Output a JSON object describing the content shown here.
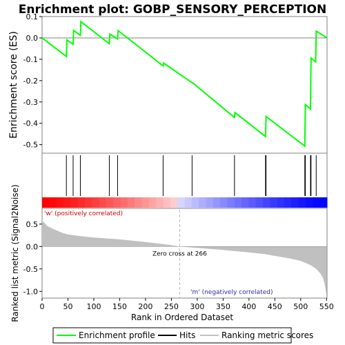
{
  "title": "Enrichment plot: GOBP_SENSORY_PERCEPTION",
  "colors": {
    "profile": "#00ff00",
    "hits": "#000000",
    "metric": "#c0c0c0",
    "zero_line": "#808080",
    "heat_pos": "#ff0000",
    "heat_neg": "#0000ff"
  },
  "legend": {
    "profile": "Enrichment profile",
    "hits": "Hits",
    "metric": "Ranking metric scores"
  },
  "chart_data": [
    {
      "type": "line",
      "name": "enrichment-profile",
      "ylabel": "Enrichment score (ES)",
      "ylim": [
        -0.54,
        0.1
      ],
      "yticks": [
        "0.1",
        "0.0",
        "-0.1",
        "-0.2",
        "-0.3",
        "-0.4",
        "-0.5"
      ],
      "grid": false,
      "x": [
        0,
        47,
        48,
        60,
        61,
        74,
        75,
        130,
        131,
        146,
        147,
        234,
        235,
        290,
        291,
        372,
        373,
        432,
        433,
        508,
        509,
        519,
        520,
        529,
        530,
        551
      ],
      "y": [
        0.0,
        -0.087,
        -0.01,
        -0.03,
        0.035,
        0.012,
        0.076,
        -0.027,
        0.018,
        -0.005,
        0.034,
        -0.131,
        -0.118,
        -0.21,
        -0.21,
        -0.373,
        -0.35,
        -0.462,
        -0.368,
        -0.507,
        -0.312,
        -0.333,
        -0.095,
        -0.112,
        0.032,
        0.0
      ]
    },
    {
      "type": "scatter",
      "name": "hits",
      "hit_ranks": [
        47,
        60,
        74,
        130,
        146,
        234,
        290,
        372,
        432,
        433,
        508,
        509,
        519,
        520,
        530
      ]
    },
    {
      "type": "area",
      "name": "ranking-metric",
      "xlabel": "Rank in Ordered Dataset",
      "ylabel": "Ranked list metric (Signal2Noise)",
      "xlim": [
        0,
        551
      ],
      "ylim": [
        -1.15,
        0.85
      ],
      "xticks": [
        "0",
        "50",
        "100",
        "150",
        "200",
        "250",
        "300",
        "350",
        "400",
        "450",
        "500",
        "550"
      ],
      "yticks": [
        "0.5",
        "0.0",
        "-0.5",
        "-1.0"
      ],
      "x": [
        0,
        5,
        10,
        20,
        30,
        40,
        50,
        75,
        100,
        150,
        200,
        230,
        250,
        266,
        300,
        350,
        400,
        430,
        450,
        480,
        500,
        510,
        520,
        530,
        538,
        543,
        546,
        548,
        550
      ],
      "y": [
        0.58,
        0.52,
        0.46,
        0.4,
        0.35,
        0.3,
        0.27,
        0.23,
        0.2,
        0.16,
        0.1,
        0.06,
        0.03,
        0.0,
        -0.03,
        -0.08,
        -0.13,
        -0.17,
        -0.21,
        -0.27,
        -0.32,
        -0.37,
        -0.42,
        -0.5,
        -0.6,
        -0.7,
        -0.82,
        -0.95,
        -1.1
      ],
      "zero_cross_rank": 266,
      "annotations": {
        "zero_cross": "Zero cross at 266",
        "positive": "'w' (positively correlated)",
        "negative": "'m' (negatively correlated)"
      }
    }
  ]
}
